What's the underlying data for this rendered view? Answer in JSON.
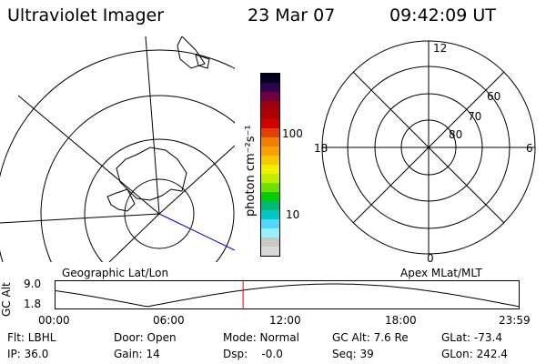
{
  "header": {
    "title": "Ultraviolet Imager",
    "date": "23 Mar 07",
    "time": "09:42:09 UT"
  },
  "colorbar": {
    "label": "photon cm⁻²s⁻¹",
    "ticks": [
      "100",
      "10"
    ],
    "colors": [
      "#d9d9d9",
      "#c8c8c8",
      "#98f0ff",
      "#50d8ff",
      "#00c8c8",
      "#00b878",
      "#00d000",
      "#70e000",
      "#c0f000",
      "#f0f000",
      "#f8c800",
      "#f8a000",
      "#f08000",
      "#e04000",
      "#d00000",
      "#b00000",
      "#a00010",
      "#700040",
      "#300050",
      "#000020"
    ]
  },
  "left_map": {
    "label": "Geographic Lat/Lon"
  },
  "right_map": {
    "label": "Apex MLat/MLT",
    "mlt_labels": {
      "top": "12",
      "bottom": "0",
      "left": "18",
      "right": "6"
    },
    "lat_labels": [
      "60",
      "70",
      "80"
    ]
  },
  "timeline": {
    "ylabel": "GC Alt",
    "yticks": [
      "9.0",
      "1.8"
    ],
    "xticks": [
      "00:00",
      "06:00",
      "12:00",
      "18:00",
      "23:59"
    ],
    "marker_time_hours": 9.7
  },
  "info": {
    "filter": "Flt: LBHL",
    "ip": "IP: 36.0",
    "door": "Door: Open",
    "gain": "Gain: 14",
    "mode": "Mode: Normal",
    "dsp": "Dsp:    -0.0",
    "gc_alt": "GC Alt: 7.6 Re",
    "seq": "Seq: 39",
    "glat": "GLat: -73.4",
    "glon": "GLon: 242.4"
  }
}
